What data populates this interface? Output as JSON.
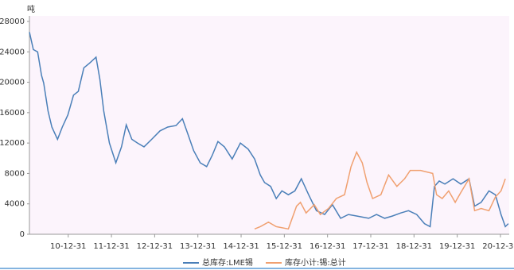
{
  "chart_data": {
    "type": "line",
    "unit": "吨",
    "xlim": [
      2010.1,
      2021.2
    ],
    "xticks": [
      {
        "value": 2010.997,
        "label": "10-12-31"
      },
      {
        "value": 2011.997,
        "label": "11-12-31"
      },
      {
        "value": 2012.997,
        "label": "12-12-31"
      },
      {
        "value": 2013.997,
        "label": "13-12-31"
      },
      {
        "value": 2014.997,
        "label": "14-12-31"
      },
      {
        "value": 2015.997,
        "label": "15-12-31"
      },
      {
        "value": 2016.997,
        "label": "16-12-31"
      },
      {
        "value": 2017.997,
        "label": "17-12-31"
      },
      {
        "value": 2018.997,
        "label": "18-12-31"
      },
      {
        "value": 2019.997,
        "label": "19-12-31"
      },
      {
        "value": 2020.997,
        "label": "20-12-31"
      }
    ],
    "ylim": [
      0,
      28000
    ],
    "yticks": [
      0,
      4000,
      8000,
      12000,
      16000,
      20000,
      24000,
      28000
    ],
    "legend": "bottom",
    "series": [
      {
        "name": "总库存:LME锡",
        "color": "#4a7fb8",
        "x": [
          2010.1,
          2010.19,
          2010.29,
          2010.38,
          2010.43,
          2010.53,
          2010.62,
          2010.75,
          2010.86,
          2010.99,
          2011.12,
          2011.23,
          2011.36,
          2011.49,
          2011.64,
          2011.73,
          2011.82,
          2011.95,
          2012.1,
          2012.23,
          2012.34,
          2012.47,
          2012.6,
          2012.75,
          2012.93,
          2013.12,
          2013.3,
          2013.49,
          2013.64,
          2013.77,
          2013.9,
          2014.05,
          2014.2,
          2014.33,
          2014.46,
          2014.61,
          2014.79,
          2014.98,
          2015.16,
          2015.31,
          2015.44,
          2015.54,
          2015.68,
          2015.81,
          2015.94,
          2016.09,
          2016.24,
          2016.39,
          2016.56,
          2016.74,
          2016.93,
          2017.11,
          2017.3,
          2017.48,
          2017.67,
          2017.95,
          2018.13,
          2018.32,
          2018.5,
          2018.69,
          2018.87,
          2019.06,
          2019.24,
          2019.37,
          2019.47,
          2019.58,
          2019.71,
          2019.9,
          2020.08,
          2020.27,
          2020.4,
          2020.55,
          2020.73,
          2020.88,
          2021.01,
          2021.11,
          2021.18
        ],
        "values": [
          26600,
          24300,
          24000,
          20900,
          19900,
          16200,
          14100,
          12500,
          14100,
          15700,
          18300,
          18800,
          21900,
          22500,
          23300,
          20400,
          16200,
          12000,
          9400,
          11500,
          14400,
          12500,
          12000,
          11500,
          12500,
          13600,
          14100,
          14300,
          15200,
          13100,
          11000,
          9400,
          8900,
          10400,
          12200,
          11500,
          9900,
          12000,
          11200,
          9900,
          7800,
          6800,
          6300,
          4700,
          5700,
          5200,
          5700,
          7300,
          5200,
          3100,
          2600,
          3900,
          2100,
          2600,
          2400,
          2100,
          2600,
          2100,
          2400,
          2800,
          3100,
          2600,
          1400,
          1000,
          6300,
          7000,
          6600,
          7300,
          6600,
          7300,
          3700,
          4200,
          5700,
          5200,
          2600,
          1000,
          1400
        ]
      },
      {
        "name": "库存小计:锡:总计",
        "color": "#f0a070",
        "x": [
          2015.31,
          2015.44,
          2015.63,
          2015.81,
          2016.09,
          2016.28,
          2016.37,
          2016.5,
          2016.69,
          2016.83,
          2017.02,
          2017.2,
          2017.39,
          2017.54,
          2017.67,
          2017.8,
          2017.91,
          2018.04,
          2018.23,
          2018.41,
          2018.6,
          2018.78,
          2018.91,
          2019.15,
          2019.43,
          2019.52,
          2019.65,
          2019.8,
          2019.95,
          2020.08,
          2020.27,
          2020.4,
          2020.55,
          2020.73,
          2020.88,
          2021.01,
          2021.11
        ],
        "values": [
          700,
          1000,
          1600,
          1000,
          700,
          3700,
          4200,
          2800,
          3900,
          2600,
          3400,
          4700,
          5200,
          8900,
          10800,
          9400,
          6800,
          4700,
          5200,
          7800,
          6300,
          7300,
          8400,
          8400,
          8000,
          5200,
          4700,
          5700,
          4200,
          5500,
          7300,
          3100,
          3400,
          3100,
          4900,
          5700,
          7300
        ]
      }
    ]
  }
}
